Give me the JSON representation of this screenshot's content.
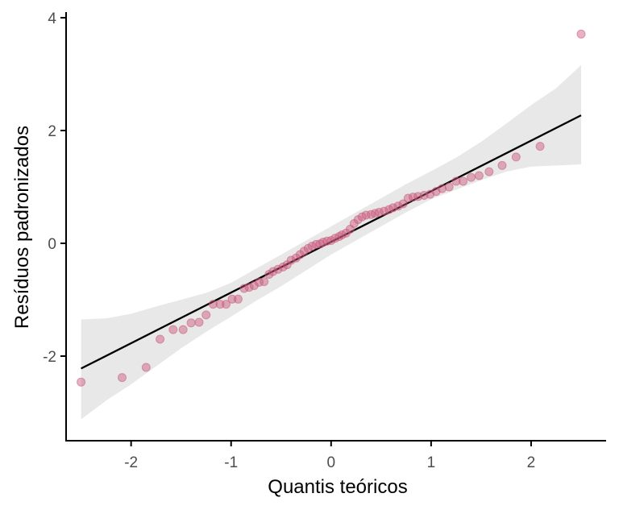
{
  "chart_data": {
    "type": "scatter",
    "title": "",
    "xlabel": "Quantis teóricos",
    "ylabel": "Resíduos padronizados",
    "xlim": [
      -2.65,
      2.75
    ],
    "ylim": [
      -3.5,
      4.1
    ],
    "x_ticks": [
      -2,
      -1,
      0,
      1,
      2
    ],
    "x_tick_labels": [
      "-2",
      "-1",
      "0",
      "1",
      "2"
    ],
    "y_ticks": [
      -2,
      0,
      2,
      4
    ],
    "y_tick_labels": [
      "-2",
      "0",
      "2",
      "4"
    ],
    "grid": false,
    "legend": "none",
    "colors": {
      "points": "#c9567a",
      "reference_line": "#000000",
      "confidence_band": "#d9d9d9",
      "axis": "#000000"
    },
    "series": [
      {
        "kind": "points",
        "x": [
          -2.5,
          -2.09,
          -1.85,
          -1.71,
          -1.58,
          -1.48,
          -1.4,
          -1.32,
          -1.25,
          -1.18,
          -1.11,
          -1.05,
          -0.99,
          -0.93,
          -0.87,
          -0.82,
          -0.77,
          -0.72,
          -0.67,
          -0.62,
          -0.58,
          -0.53,
          -0.48,
          -0.44,
          -0.4,
          -0.35,
          -0.31,
          -0.27,
          -0.23,
          -0.19,
          -0.15,
          -0.11,
          -0.08,
          -0.04,
          0.0,
          0.04,
          0.08,
          0.11,
          0.15,
          0.19,
          0.23,
          0.27,
          0.31,
          0.35,
          0.4,
          0.44,
          0.48,
          0.53,
          0.58,
          0.62,
          0.67,
          0.72,
          0.77,
          0.82,
          0.87,
          0.93,
          0.99,
          1.05,
          1.11,
          1.18,
          1.25,
          1.32,
          1.4,
          1.48,
          1.58,
          1.71,
          1.85,
          2.09,
          2.5
        ],
        "y": [
          -2.46,
          -2.38,
          -2.2,
          -1.7,
          -1.53,
          -1.53,
          -1.41,
          -1.4,
          -1.27,
          -1.08,
          -1.08,
          -1.08,
          -0.99,
          -0.99,
          -0.8,
          -0.78,
          -0.75,
          -0.69,
          -0.68,
          -0.55,
          -0.5,
          -0.46,
          -0.42,
          -0.38,
          -0.3,
          -0.26,
          -0.2,
          -0.14,
          -0.09,
          -0.05,
          -0.02,
          -0.01,
          0.02,
          0.04,
          0.05,
          0.09,
          0.12,
          0.15,
          0.18,
          0.25,
          0.35,
          0.42,
          0.47,
          0.5,
          0.51,
          0.53,
          0.55,
          0.57,
          0.6,
          0.63,
          0.66,
          0.7,
          0.8,
          0.82,
          0.83,
          0.85,
          0.87,
          0.92,
          0.97,
          1.0,
          1.1,
          1.1,
          1.17,
          1.2,
          1.27,
          1.38,
          1.53,
          1.72,
          3.71
        ]
      },
      {
        "kind": "reference_line",
        "x": [
          -2.5,
          2.5
        ],
        "y": [
          -2.22,
          2.27
        ]
      },
      {
        "kind": "confidence_band",
        "x": [
          -2.5,
          -2.25,
          -2.0,
          -1.75,
          -1.5,
          -1.25,
          -1.0,
          -0.75,
          -0.5,
          -0.25,
          0.0,
          0.25,
          0.5,
          0.75,
          1.0,
          1.25,
          1.5,
          1.75,
          2.0,
          2.25,
          2.5
        ],
        "upper": [
          -1.35,
          -1.33,
          -1.25,
          -1.12,
          -1.0,
          -0.88,
          -0.7,
          -0.45,
          -0.2,
          0.05,
          0.3,
          0.55,
          0.8,
          1.05,
          1.28,
          1.52,
          1.8,
          2.12,
          2.45,
          2.75,
          3.16
        ],
        "lower": [
          -3.12,
          -2.79,
          -2.5,
          -2.18,
          -1.86,
          -1.57,
          -1.3,
          -1.02,
          -0.76,
          -0.48,
          -0.2,
          0.05,
          0.3,
          0.55,
          0.78,
          0.95,
          1.12,
          1.27,
          1.36,
          1.38,
          1.4
        ]
      }
    ]
  }
}
